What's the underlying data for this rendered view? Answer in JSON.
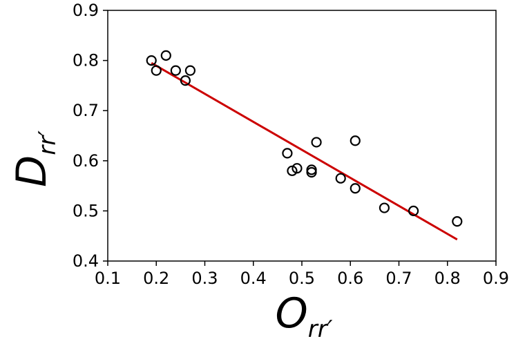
{
  "chart_data": {
    "type": "scatter",
    "title": "",
    "xlabel": "O",
    "xlabel_sub": "rr′",
    "ylabel": "D",
    "ylabel_sub": "rr′",
    "xlim": [
      0.1,
      0.9
    ],
    "ylim": [
      0.4,
      0.9
    ],
    "xticks": [
      "0.1",
      "0.2",
      "0.3",
      "0.4",
      "0.5",
      "0.6",
      "0.7",
      "0.8",
      "0.9"
    ],
    "yticks": [
      "0.4",
      "0.5",
      "0.6",
      "0.7",
      "0.8",
      "0.9"
    ],
    "grid": false,
    "colors": {
      "points": "#000000",
      "fit_line": "#cc0000"
    },
    "series": [
      {
        "points": [
          {
            "x": 0.19,
            "y": 0.8
          },
          {
            "x": 0.2,
            "y": 0.78
          },
          {
            "x": 0.22,
            "y": 0.81
          },
          {
            "x": 0.24,
            "y": 0.78
          },
          {
            "x": 0.26,
            "y": 0.76
          },
          {
            "x": 0.27,
            "y": 0.78
          },
          {
            "x": 0.47,
            "y": 0.615
          },
          {
            "x": 0.48,
            "y": 0.58
          },
          {
            "x": 0.49,
            "y": 0.585
          },
          {
            "x": 0.52,
            "y": 0.582
          },
          {
            "x": 0.52,
            "y": 0.577
          },
          {
            "x": 0.53,
            "y": 0.637
          },
          {
            "x": 0.58,
            "y": 0.565
          },
          {
            "x": 0.61,
            "y": 0.64
          },
          {
            "x": 0.61,
            "y": 0.545
          },
          {
            "x": 0.67,
            "y": 0.506
          },
          {
            "x": 0.73,
            "y": 0.5
          },
          {
            "x": 0.82,
            "y": 0.479
          }
        ]
      }
    ],
    "fit_line": {
      "x": [
        0.19,
        0.82
      ],
      "y": [
        0.795,
        0.443
      ]
    }
  }
}
